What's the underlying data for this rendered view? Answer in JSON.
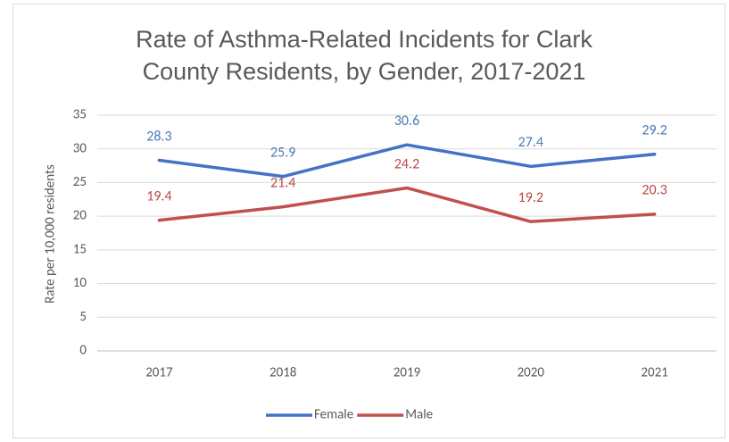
{
  "chart_data": {
    "type": "line",
    "title": "Rate of Asthma-Related Incidents for Clark County Residents, by Gender, 2017-2021",
    "y_label": "Rate per 10,000 residents",
    "categories": [
      "2017",
      "2018",
      "2019",
      "2020",
      "2021"
    ],
    "series": [
      {
        "name": "Female",
        "color": "#4472c4",
        "label_color": "#4a7ab8",
        "values": [
          28.3,
          25.9,
          30.6,
          27.4,
          29.2
        ]
      },
      {
        "name": "Male",
        "color": "#c0504d",
        "label_color": "#b84744",
        "values": [
          19.4,
          21.4,
          24.2,
          19.2,
          20.3
        ]
      }
    ],
    "ylim": [
      0,
      35
    ],
    "yticks": [
      0,
      5,
      10,
      15,
      20,
      25,
      30,
      35
    ],
    "grid": true,
    "legend": "bottom"
  }
}
